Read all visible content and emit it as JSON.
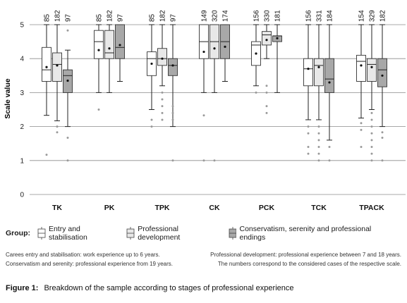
{
  "chart_data": {
    "type": "boxplot",
    "ylabel": "Scale value",
    "ylim": [
      0,
      5
    ],
    "yticks": [
      0,
      1,
      2,
      3,
      4,
      5
    ],
    "grid": true,
    "categories": [
      "TK",
      "PK",
      "TPK",
      "CK",
      "PCK",
      "TCK",
      "TPACK"
    ],
    "series": [
      {
        "name": "Entry and stabilisation",
        "color": "#ffffff",
        "counts": [
          85,
          85,
          85,
          149,
          156,
          156,
          154
        ],
        "boxes": [
          {
            "whislo": 2.33,
            "q1": 3.33,
            "med": 3.67,
            "q3": 4.33,
            "whishi": 5.0,
            "mean": 3.75,
            "fliers": [
              1.17
            ]
          },
          {
            "whislo": 3.0,
            "q1": 4.0,
            "med": 4.5,
            "q3": 4.83,
            "whishi": 5.0,
            "mean": 4.25,
            "fliers": [
              2.5
            ]
          },
          {
            "whislo": 2.5,
            "q1": 3.5,
            "med": 4.0,
            "q3": 4.2,
            "whishi": 5.0,
            "mean": 3.85,
            "fliers": [
              2.2,
              2.0
            ]
          },
          {
            "whislo": 3.0,
            "q1": 4.0,
            "med": 4.5,
            "q3": 5.0,
            "whishi": 5.0,
            "mean": 4.2,
            "fliers": [
              2.33,
              1.0
            ]
          },
          {
            "whislo": 3.2,
            "q1": 3.8,
            "med": 4.4,
            "q3": 4.5,
            "whishi": 5.0,
            "mean": 4.15,
            "fliers": [
              3.0
            ]
          },
          {
            "whislo": 2.2,
            "q1": 3.2,
            "med": 3.7,
            "q3": 4.0,
            "whishi": 5.0,
            "mean": 3.7,
            "fliers": [
              2.0,
              1.8,
              1.4,
              1.2
            ]
          },
          {
            "whislo": 2.25,
            "q1": 3.33,
            "med": 3.92,
            "q3": 4.1,
            "whishi": 5.0,
            "mean": 3.8,
            "fliers": [
              2.1,
              1.9,
              1.4
            ]
          }
        ]
      },
      {
        "name": "Professional development",
        "color": "#e8e8e8",
        "counts": [
          182,
          182,
          182,
          320,
          330,
          331,
          329
        ],
        "boxes": [
          {
            "whislo": 2.17,
            "q1": 3.33,
            "med": 3.83,
            "q3": 4.17,
            "whishi": 5.0,
            "mean": 3.8,
            "fliers": [
              2.0,
              1.83
            ]
          },
          {
            "whislo": 3.0,
            "q1": 4.0,
            "med": 4.17,
            "q3": 4.83,
            "whishi": 5.0,
            "mean": 4.3,
            "fliers": []
          },
          {
            "whislo": 3.2,
            "q1": 3.8,
            "med": 4.0,
            "q3": 4.3,
            "whishi": 5.0,
            "mean": 4.0,
            "fliers": [
              3.0,
              2.8,
              2.6,
              2.4,
              2.2
            ]
          },
          {
            "whislo": 3.0,
            "q1": 4.0,
            "med": 4.5,
            "q3": 5.0,
            "whishi": 5.0,
            "mean": 4.3,
            "fliers": [
              1.0
            ]
          },
          {
            "whislo": 4.0,
            "q1": 4.4,
            "med": 4.7,
            "q3": 4.8,
            "whishi": 5.0,
            "mean": 4.55,
            "fliers": [
              3.2,
              3.0,
              2.6,
              2.4
            ]
          },
          {
            "whislo": 2.2,
            "q1": 3.2,
            "med": 3.8,
            "q3": 4.0,
            "whishi": 5.0,
            "mean": 3.75,
            "fliers": [
              2.0,
              1.8,
              1.6,
              1.4,
              1.2,
              1.0
            ]
          },
          {
            "whislo": 2.5,
            "q1": 3.33,
            "med": 3.83,
            "q3": 4.0,
            "whishi": 5.0,
            "mean": 3.75,
            "fliers": [
              2.4,
              2.2,
              2.0,
              1.8,
              1.6,
              1.4,
              1.2,
              1.0
            ]
          }
        ]
      },
      {
        "name": "Conservatism, serenity and professional endings",
        "color": "#a8a8a8",
        "counts": [
          97,
          97,
          97,
          174,
          181,
          184,
          182
        ],
        "boxes": [
          {
            "whislo": 2.0,
            "q1": 3.0,
            "med": 3.5,
            "q3": 3.67,
            "whishi": 4.25,
            "mean": 3.35,
            "fliers": [
              4.83,
              1.67,
              1.0
            ]
          },
          {
            "whislo": 3.33,
            "q1": 4.0,
            "med": 4.33,
            "q3": 5.0,
            "whishi": 5.0,
            "mean": 4.4,
            "fliers": []
          },
          {
            "whislo": 2.0,
            "q1": 3.5,
            "med": 3.8,
            "q3": 4.0,
            "whishi": 5.0,
            "mean": 3.8,
            "fliers": [
              2.6,
              2.4,
              2.2,
              1.0
            ]
          },
          {
            "whislo": 3.33,
            "q1": 4.0,
            "med": 4.5,
            "q3": 5.0,
            "whishi": 5.0,
            "mean": 4.35,
            "fliers": []
          },
          {
            "whislo": 3.0,
            "q1": 4.5,
            "med": 4.67,
            "q3": 4.67,
            "whishi": 5.0,
            "mean": 4.6,
            "fliers": []
          },
          {
            "whislo": 1.6,
            "q1": 3.0,
            "med": 3.4,
            "q3": 4.0,
            "whishi": 5.0,
            "mean": 3.3,
            "fliers": [
              1.4,
              1.0
            ]
          },
          {
            "whislo": 2.0,
            "q1": 3.17,
            "med": 3.67,
            "q3": 4.0,
            "whishi": 5.0,
            "mean": 3.5,
            "fliers": [
              1.83,
              1.67,
              1.0
            ]
          }
        ]
      }
    ]
  },
  "legend": {
    "group_label": "Group:",
    "items": [
      "Entry and stabilisation",
      "Professional development",
      "Conservatism, serenity and professional endings"
    ]
  },
  "notes": {
    "left_1": "Carees entry and stabilisation: work experience up to 6 years.",
    "left_2": "Conservatism and serenity: professional experience from 19 years.",
    "right_1": "Professional development: professional experience between 7 and 18 years.",
    "right_2": "The numbers correspond to the considered cases of the respective scale."
  },
  "caption": {
    "figure_label": "Figure 1:",
    "text": "Breakdown of the sample according to stages of professional experience"
  }
}
